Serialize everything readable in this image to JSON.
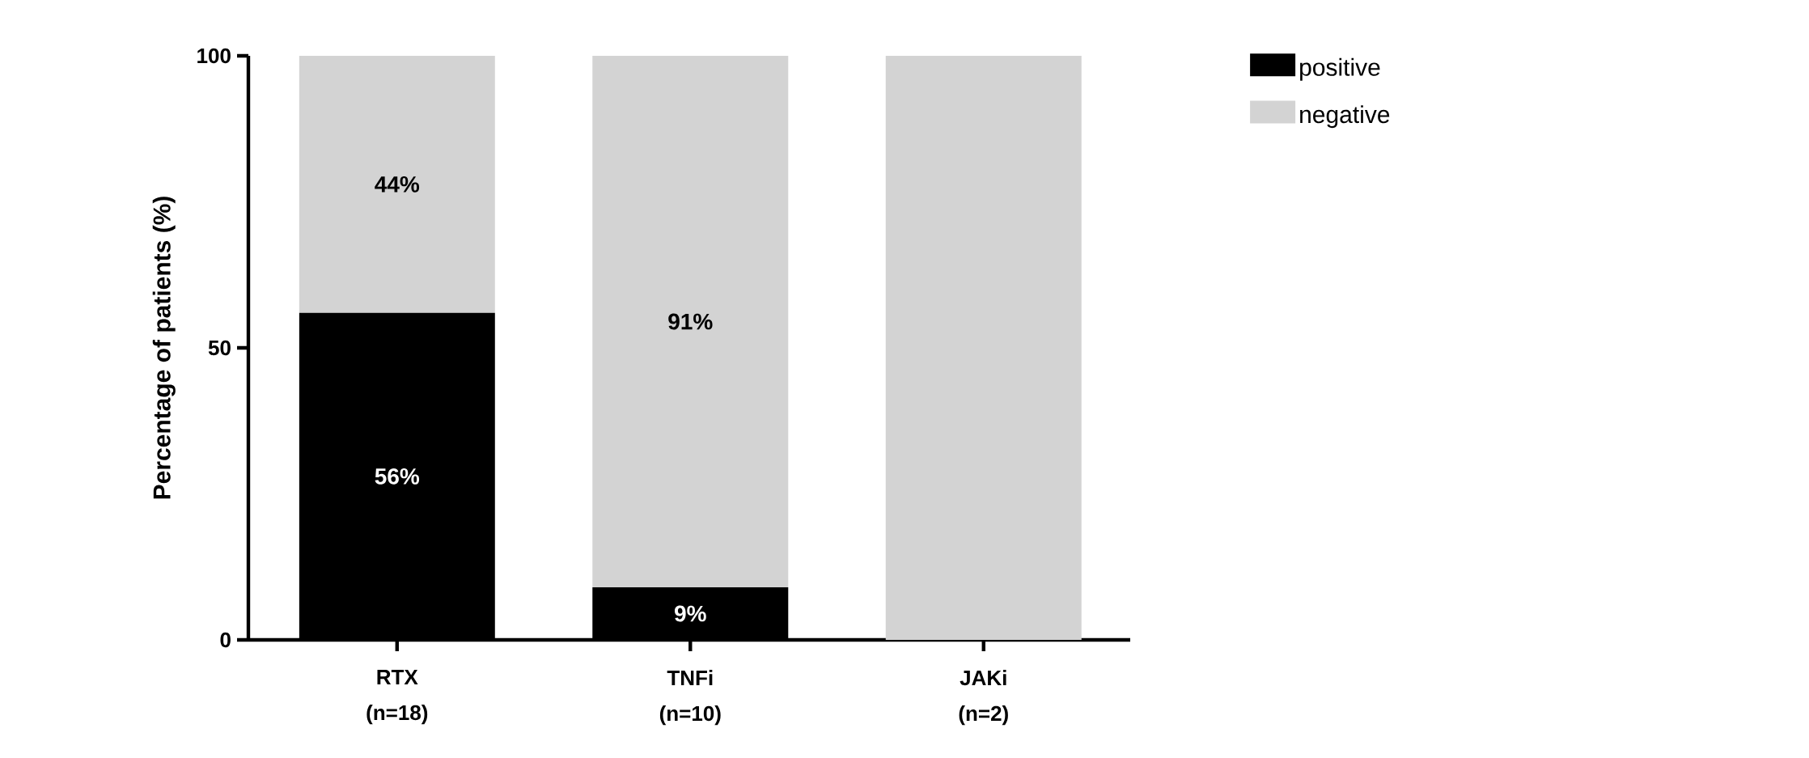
{
  "chart_data": {
    "type": "bar",
    "stacked": true,
    "ylabel": "Percentage of patients (%)",
    "categories": [
      "RTX (n=18)",
      "TNFi (n=10)",
      "JAKi (n=2)"
    ],
    "series": [
      {
        "name": "positive",
        "color": "#000000",
        "values": [
          56,
          9,
          0
        ],
        "value_labels": [
          "56%",
          "9%",
          null
        ]
      },
      {
        "name": "negative",
        "color": "#d3d3d3",
        "values": [
          44,
          91,
          100
        ],
        "value_labels": [
          "44%",
          "91%",
          null
        ]
      }
    ],
    "ylim": [
      0,
      100
    ],
    "yticks": [
      0,
      50,
      100
    ],
    "grid": false,
    "legend": "top right"
  }
}
